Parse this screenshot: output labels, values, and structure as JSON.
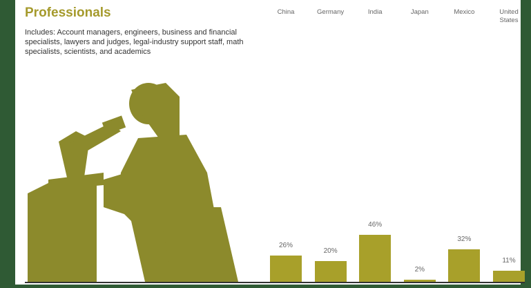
{
  "chart_data": {
    "type": "bar",
    "title": "Professionals",
    "subtitle": "Includes: Account managers, engineers, business and financial specialists, lawyers and judges, legal-industry support staff, math specialists, scientists, and academics",
    "categories": [
      "China",
      "Germany",
      "India",
      "Japan",
      "Mexico",
      "United States"
    ],
    "values": [
      26,
      20,
      46,
      2,
      32,
      11
    ],
    "value_labels": [
      "26%",
      "20%",
      "46%",
      "2%",
      "32%",
      "11%"
    ],
    "color": "#a8a02a"
  }
}
